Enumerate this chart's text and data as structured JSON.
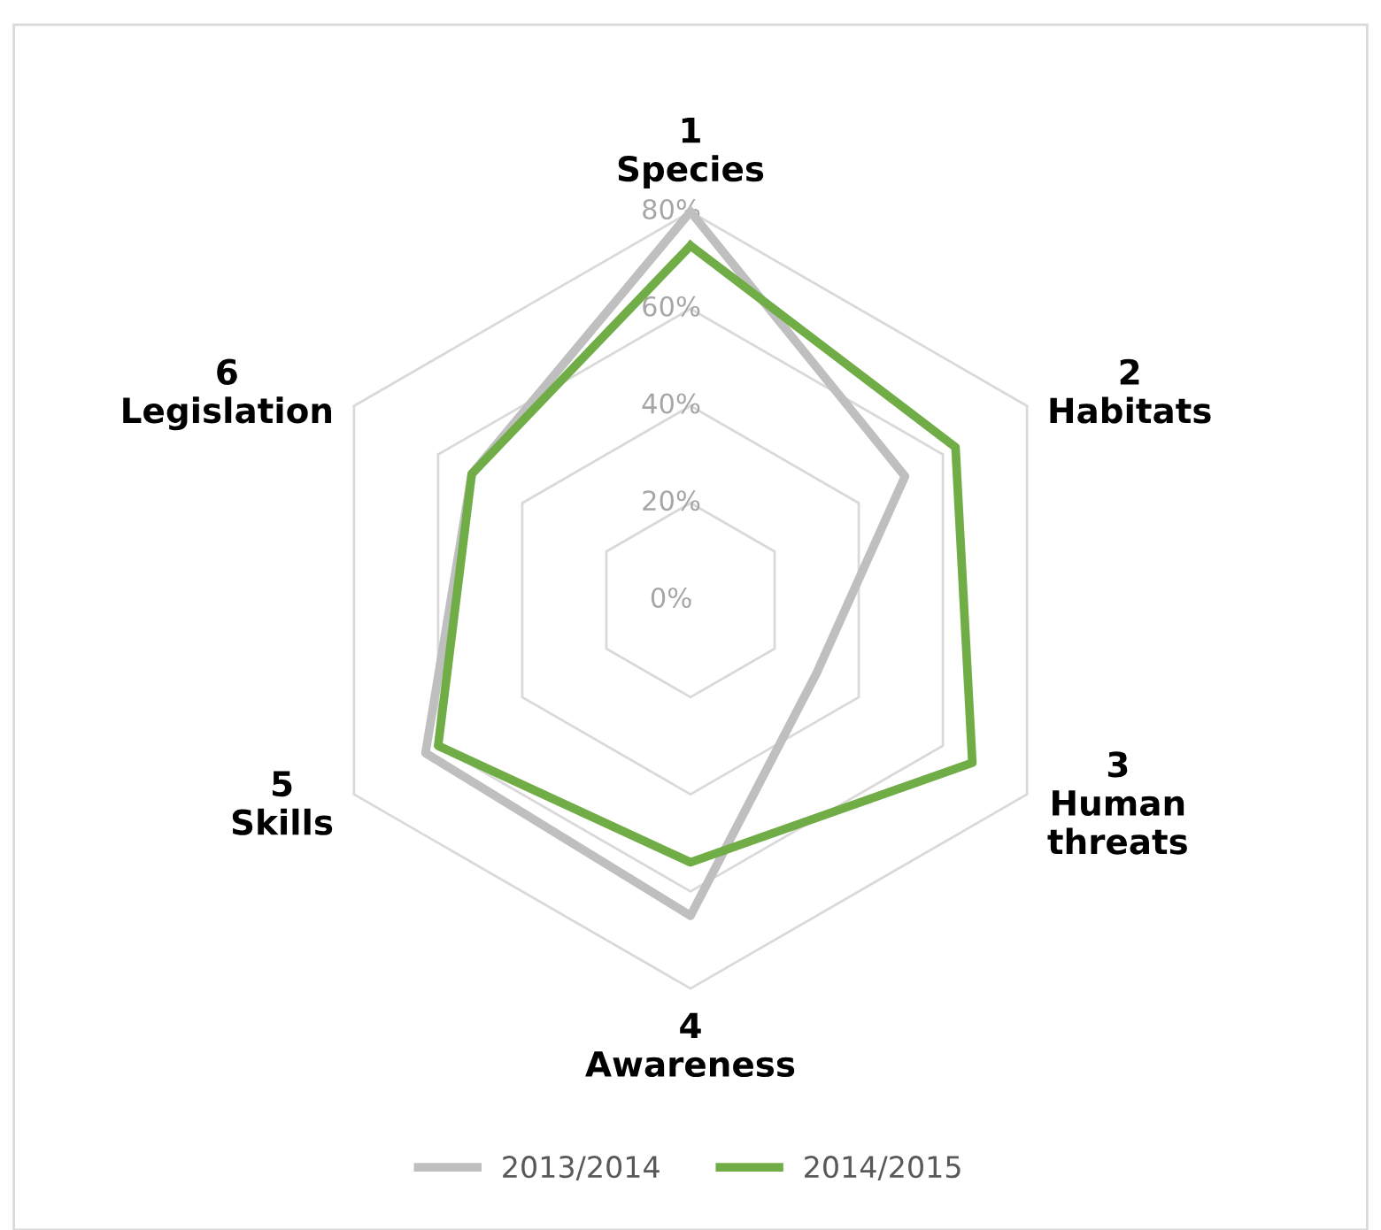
{
  "chart_data": {
    "type": "radar",
    "categories": [
      "1\nSpecies",
      "2\nHabitats",
      "3\nHuman\nthreats",
      "4\nAwareness",
      "5\nSkills",
      "6\nLegislation"
    ],
    "series": [
      {
        "name": "2013/2014",
        "color": "#bfbfbf",
        "values": [
          80,
          51,
          30,
          65,
          63,
          52
        ]
      },
      {
        "name": "2014/2015",
        "color": "#70ad47",
        "values": [
          73,
          63,
          67,
          54,
          60,
          52
        ]
      }
    ],
    "ylim": [
      0,
      80
    ],
    "yticks": [
      {
        "value": 0,
        "label": "0%"
      },
      {
        "value": 20,
        "label": "20%"
      },
      {
        "value": 40,
        "label": "40%"
      },
      {
        "value": 60,
        "label": "60%"
      },
      {
        "value": 80,
        "label": "80%"
      }
    ],
    "grid": true,
    "legend": "bottom"
  }
}
